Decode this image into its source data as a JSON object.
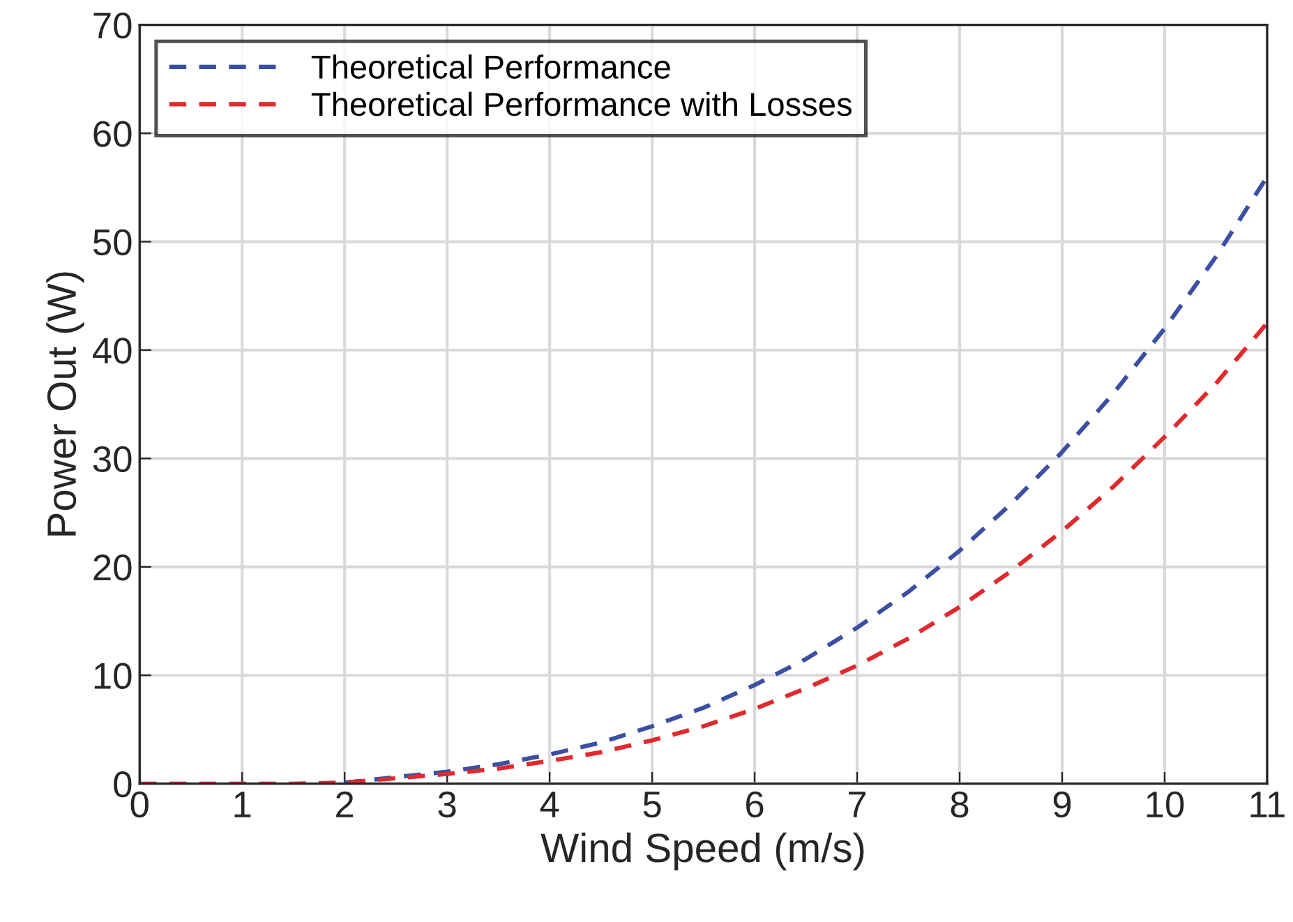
{
  "chart_data": {
    "type": "line",
    "xlabel": "Wind Speed (m/s)",
    "ylabel": "Power Out (W)",
    "xlim": [
      0,
      11
    ],
    "xticks": [
      0,
      1,
      2,
      3,
      4,
      5,
      6,
      7,
      8,
      9,
      10,
      11
    ],
    "ylim": [
      0,
      70
    ],
    "yticks": [
      0,
      10,
      20,
      30,
      40,
      50,
      60,
      70
    ],
    "grid": true,
    "legend": "top left",
    "line_style": "dashed",
    "marker": "none",
    "x": [
      0,
      0.5,
      1,
      1.5,
      2,
      2.5,
      3,
      3.5,
      4,
      4.5,
      5,
      5.5,
      6,
      6.5,
      7,
      7.5,
      8,
      8.5,
      9,
      9.5,
      10,
      10.5,
      11
    ],
    "series": [
      {
        "name": "Theoretical Performance",
        "color": "#3b4fa3",
        "values": [
          null,
          null,
          null,
          null,
          0.1,
          0.6,
          1.1,
          1.8,
          2.7,
          3.8,
          5.3,
          7.0,
          9.1,
          11.5,
          14.4,
          17.7,
          21.5,
          25.8,
          30.6,
          36.0,
          42.0,
          48.6,
          56.0
        ]
      },
      {
        "name": "Theoretical Performance with Losses",
        "color": "#e02a2e",
        "values": [
          0,
          0,
          0,
          0,
          0.1,
          0.5,
          0.9,
          1.4,
          2.1,
          2.9,
          4.0,
          5.3,
          6.9,
          8.8,
          10.9,
          13.4,
          16.3,
          19.6,
          23.3,
          27.4,
          32.0,
          36.9,
          42.5
        ]
      }
    ]
  }
}
